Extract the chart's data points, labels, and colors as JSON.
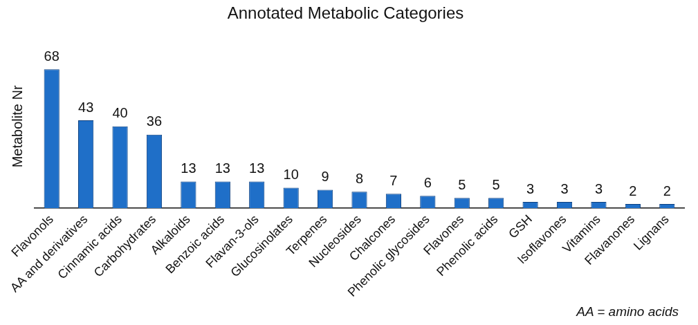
{
  "chart_data": {
    "type": "bar",
    "title": "Annotated Metabolic Categories",
    "ylabel": "Metabolite Nr",
    "categories": [
      "Flavonols",
      "AA and derivatives",
      "Cinnamic acids",
      "Carbohydrates",
      "Alkaloids",
      "Benzoic acids",
      "Flavan-3-ols",
      "Glucosinolates",
      "Terpenes",
      "Nucleosides",
      "Chalcones",
      "Phenolic glycosides",
      "Flavones",
      "Phenolic acids",
      "GSH",
      "Isoflavones",
      "Vitamins",
      "Flavanones",
      "Lignans"
    ],
    "values": [
      68,
      43,
      40,
      36,
      13,
      13,
      13,
      10,
      9,
      8,
      7,
      6,
      5,
      5,
      3,
      3,
      3,
      2,
      2
    ],
    "color": "#1f6fc8",
    "data_labels": true,
    "tick_labels": "x",
    "grid": false,
    "legend": false,
    "annotations": [
      "AA = amino acids"
    ]
  }
}
